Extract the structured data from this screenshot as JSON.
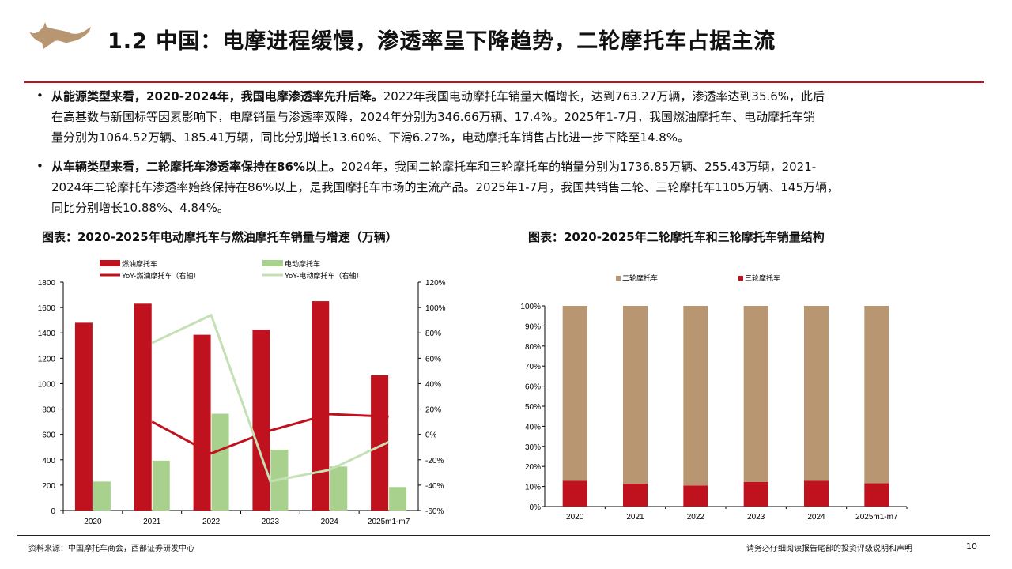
{
  "header": {
    "title": "1.2 中国：电摩进程缓慢，渗透率呈下降趋势，二轮摩托车占据主流",
    "logo_icon": "bull-logo-icon"
  },
  "bullets": [
    {
      "lines": [
        {
          "bold": "从能源类型来看，2020-2024年，我国电摩渗透率先升后降。",
          "text": "2022年我国电动摩托车销量大幅增长，达到763.27万辆，渗透率达到35.6%，此后"
        },
        {
          "bold": "",
          "text": "在高基数与新国标等因素影响下，电摩销量与渗透率双降，2024年分别为346.66万辆、17.4%。2025年1-7月，我国燃油摩托车、电动摩托车销"
        },
        {
          "bold": "",
          "text": "量分别为1064.52万辆、185.41万辆，同比分别增长13.60%、下滑6.27%，电动摩托车销售占比进一步下降至14.8%。"
        }
      ]
    },
    {
      "lines": [
        {
          "bold": "从车辆类型来看，二轮摩托车渗透率保持在86%以上。",
          "text": "2024年，我国二轮摩托车和三轮摩托车的销量分别为1736.85万辆、255.43万辆，2021-"
        },
        {
          "bold": "",
          "text": "2024年二轮摩托车渗透率始终保持在86%以上，是我国摩托车市场的主流产品。2025年1-7月，我国共销售二轮、三轮摩托车1105万辆、145万辆，"
        },
        {
          "bold": "",
          "text": "同比分别增长10.88%、4.84%。"
        }
      ]
    }
  ],
  "chart_data": [
    {
      "type": "bar",
      "title": "图表：2020-2025年电动摩托车与燃油摩托车销量与增速（万辆）",
      "categories": [
        "2020",
        "2021",
        "2022",
        "2023",
        "2024",
        "2025m1-m7"
      ],
      "y_left": {
        "range": [
          0,
          1800
        ],
        "ticks": [
          "0",
          "200",
          "400",
          "600",
          "800",
          "1000",
          "1200",
          "1400",
          "1600",
          "1800"
        ]
      },
      "y_right": {
        "range": [
          -60,
          120
        ],
        "ticks": [
          "-60%",
          "-40%",
          "-20%",
          "0%",
          "20%",
          "40%",
          "60%",
          "80%",
          "100%",
          "120%"
        ]
      },
      "legend_position": "top",
      "grid": false,
      "series": [
        {
          "name": "燃油摩托车",
          "kind": "bar",
          "axis": "left",
          "color": "#c0111f",
          "values": [
            1480,
            1630,
            1385,
            1425,
            1650,
            1065
          ]
        },
        {
          "name": "电动摩托车",
          "kind": "bar",
          "axis": "left",
          "color": "#a9d18e",
          "values": [
            228,
            393,
            763,
            480,
            347,
            185
          ]
        },
        {
          "name": "YoY-燃油摩托车（右轴）",
          "kind": "line",
          "axis": "right",
          "color": "#c0111f",
          "values": [
            null,
            10,
            -15,
            3,
            16,
            14
          ]
        },
        {
          "name": "YoY-电动摩托车（右轴）",
          "kind": "line",
          "axis": "right",
          "color": "#c5e0b4",
          "values": [
            null,
            72,
            94,
            -37,
            -28,
            -6
          ]
        }
      ]
    },
    {
      "type": "bar",
      "stacked": true,
      "title": "图表：2020-2025年二轮摩托车和三轮摩托车销量结构",
      "categories": [
        "2020",
        "2021",
        "2022",
        "2023",
        "2024",
        "2025m1-m7"
      ],
      "y": {
        "range": [
          0,
          100
        ],
        "ticks": [
          "0%",
          "10%",
          "20%",
          "30%",
          "40%",
          "50%",
          "60%",
          "70%",
          "80%",
          "90%",
          "100%"
        ]
      },
      "legend_position": "top",
      "grid": false,
      "series": [
        {
          "name": "二轮摩托车",
          "color": "#b89672",
          "values": [
            87.2,
            88.6,
            89.5,
            87.7,
            87.2,
            88.4
          ]
        },
        {
          "name": "三轮摩托车",
          "color": "#c0111f",
          "values": [
            12.8,
            11.4,
            10.5,
            12.3,
            12.8,
            11.6
          ]
        }
      ]
    }
  ],
  "footer": {
    "source": "资料来源：中国摩托车商会，西部证券研发中心",
    "disclaimer": "请务必仔细阅读报告尾部的投资评级说明和声明",
    "page": "10"
  },
  "colors": {
    "accent": "#c0121f",
    "logo": "#b89672"
  }
}
